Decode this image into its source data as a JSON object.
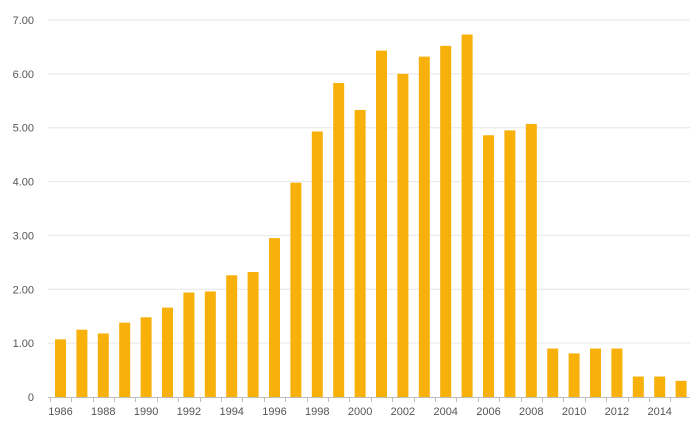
{
  "colors": {
    "bar": "#F7B10A",
    "grid": "#E6E6E6",
    "axis": "#BDBDBD",
    "text": "#555555",
    "background": "#FFFFFF"
  },
  "chart_data": {
    "type": "bar",
    "title": "",
    "xlabel": "",
    "ylabel": "",
    "grid": true,
    "legend": "none",
    "ylim": [
      0,
      7
    ],
    "y_ticks": [
      "0",
      "1.00",
      "2.00",
      "3.00",
      "4.00",
      "5.00",
      "6.00",
      "7.00"
    ],
    "x_tick_labels": [
      "1986",
      "1988",
      "1990",
      "1992",
      "1994",
      "1996",
      "1998",
      "2000",
      "2002",
      "2004",
      "2006",
      "2008",
      "2010",
      "2012",
      "2014"
    ],
    "categories": [
      "1986",
      "1987",
      "1988",
      "1989",
      "1990",
      "1991",
      "1992",
      "1993",
      "1994",
      "1995",
      "1996",
      "1997",
      "1998",
      "1999",
      "2000",
      "2001",
      "2002",
      "2003",
      "2004",
      "2005",
      "2006",
      "2007",
      "2008",
      "2009",
      "2010",
      "2011",
      "2012",
      "2013",
      "2014",
      "2015"
    ],
    "values": [
      1.07,
      1.25,
      1.18,
      1.38,
      1.48,
      1.66,
      1.94,
      1.96,
      2.26,
      2.32,
      2.95,
      3.98,
      4.93,
      5.83,
      5.33,
      6.43,
      6.0,
      6.32,
      6.52,
      6.73,
      4.86,
      4.95,
      5.07,
      0.9,
      0.81,
      0.9,
      0.9,
      0.38,
      0.38,
      0.3
    ]
  }
}
